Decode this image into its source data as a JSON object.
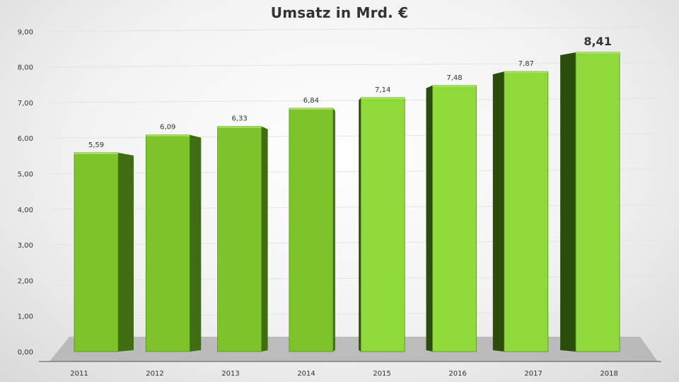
{
  "chart_data": {
    "type": "bar",
    "title": "Umsatz in Mrd.  €",
    "categories": [
      "2011",
      "2012",
      "2013",
      "2014",
      "2015",
      "2016",
      "2017",
      "2018"
    ],
    "values": [
      5.59,
      6.09,
      6.33,
      6.84,
      7.14,
      7.48,
      7.87,
      8.41
    ],
    "value_labels": [
      "5,59",
      "6,09",
      "6,33",
      "6,84",
      "7,14",
      "7,48",
      "7,87",
      "8,41"
    ],
    "y_tick_labels": [
      "0,00",
      "1,00",
      "2,00",
      "3,00",
      "4,00",
      "5,00",
      "6,00",
      "7,00",
      "8,00",
      "9,00"
    ],
    "ylim": [
      0,
      9
    ],
    "xlabel": "",
    "ylabel": "",
    "grid": true,
    "style": "3d-column",
    "colors": {
      "bar_front": "#7cc42a",
      "bar_front_light": "#8fd93a",
      "bar_side": "#3f6e12",
      "bar_side_dark": "#2b4d0b",
      "bar_top": "#a9e35f",
      "floor": "#b3b3b3",
      "text": "#333333"
    }
  }
}
